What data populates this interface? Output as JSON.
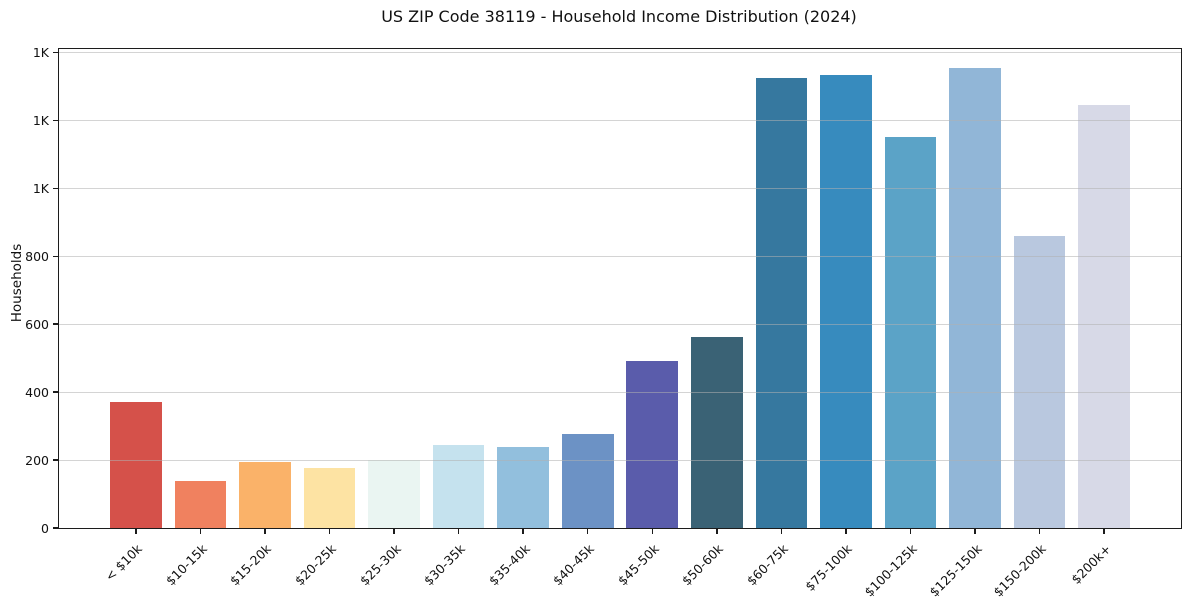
{
  "chart_data": {
    "type": "bar",
    "title": "US ZIP Code 38119 - Household Income Distribution (2024)",
    "xlabel": "",
    "ylabel": "Households",
    "categories": [
      "< $10k",
      "$10-15k",
      "$15-20k",
      "$20-25k",
      "$25-30k",
      "$30-35k",
      "$35-40k",
      "$40-45k",
      "$45-50k",
      "$50-60k",
      "$60-75k",
      "$75-100k",
      "$100-125k",
      "$125-150k",
      "$150-200k",
      "$200k+"
    ],
    "values": [
      371,
      138,
      194,
      177,
      200,
      245,
      239,
      277,
      492,
      563,
      1324,
      1334,
      1152,
      1354,
      860,
      1246
    ],
    "bar_colors": [
      "#d5514a",
      "#f0815f",
      "#fab269",
      "#fde3a3",
      "#eaf5f2",
      "#c5e2ee",
      "#92bfdd",
      "#6c92c5",
      "#5a5cab",
      "#3a6275",
      "#36789f",
      "#378bbe",
      "#5ba3c7",
      "#91b6d7",
      "#b9c8df",
      "#d7d9e7"
    ],
    "yticks": [
      {
        "value": 0,
        "label": "0"
      },
      {
        "value": 200,
        "label": "200"
      },
      {
        "value": 400,
        "label": "400"
      },
      {
        "value": 600,
        "label": "600"
      },
      {
        "value": 800,
        "label": "800"
      },
      {
        "value": 1000,
        "label": "1K"
      },
      {
        "value": 1200,
        "label": "1K"
      },
      {
        "value": 1400,
        "label": "1K"
      }
    ],
    "ylim": [
      0,
      1410
    ],
    "xlim": [
      -1.19,
      16.19
    ],
    "bar_width": 0.8,
    "grid": "horizontal",
    "legend": "none",
    "colors": {
      "background": "#ffffff",
      "grid_line": "rgba(176,176,176,0.55)",
      "spine": "#1c1c1c",
      "text": "#111111"
    }
  }
}
